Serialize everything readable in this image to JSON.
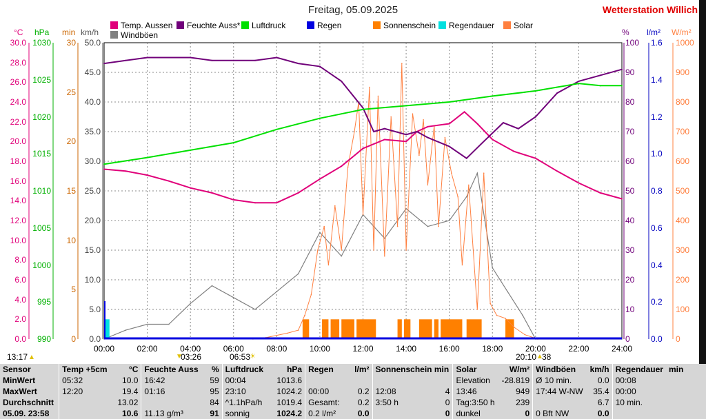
{
  "title": "Freitag, 05.09.2025",
  "brand": "Wetterstation Willich",
  "legend": [
    {
      "label": "Temp. Aussen",
      "color": "#e0007a"
    },
    {
      "label": "Feuchte Auss*",
      "color": "#70007a"
    },
    {
      "label": "Luftdruck",
      "color": "#00e000"
    },
    {
      "label": "Regen",
      "color": "#0000e0"
    },
    {
      "label": "Sonnenschein",
      "color": "#ff8000"
    },
    {
      "label": "Regendauer",
      "color": "#00e0e0"
    },
    {
      "label": "Solar",
      "color": "#ff8040"
    },
    {
      "label": "Windböen",
      "color": "#808080"
    }
  ],
  "axes": {
    "units_left": [
      "°C",
      "hPa",
      "min",
      "km/h"
    ],
    "units_right": [
      "%",
      "l/m²",
      "W/m²"
    ],
    "temp_ticks": [
      "30.0",
      "28.0",
      "26.0",
      "24.0",
      "22.0",
      "20.0",
      "18.0",
      "16.0",
      "14.0",
      "12.0",
      "10.0",
      "8.0",
      "6.0",
      "4.0",
      "2.0",
      "0.0"
    ],
    "hpa_ticks": [
      "1030",
      "1025",
      "1020",
      "1015",
      "1010",
      "1005",
      "1000",
      "995",
      "990"
    ],
    "min_ticks": [
      "30",
      "25",
      "20",
      "15",
      "10",
      "5",
      "0"
    ],
    "kmh_ticks": [
      "50.0",
      "45.0",
      "40.0",
      "35.0",
      "30.0",
      "25.0",
      "20.0",
      "15.0",
      "10.0",
      "5.0",
      "0.0"
    ],
    "pct_ticks": [
      "100",
      "90",
      "80",
      "70",
      "60",
      "50",
      "40",
      "30",
      "20",
      "10",
      "0"
    ],
    "lm2_ticks": [
      "1.6",
      "1.4",
      "1.2",
      "1.0",
      "0.8",
      "0.6",
      "0.4",
      "0.2",
      "0.0"
    ],
    "wm2_ticks": [
      "1000",
      "900",
      "800",
      "700",
      "600",
      "500",
      "400",
      "300",
      "200",
      "100",
      "0"
    ],
    "x_ticks": [
      "00:00",
      "02:00",
      "04:00",
      "06:00",
      "08:00",
      "10:00",
      "12:00",
      "14:00",
      "16:00",
      "18:00",
      "20:00",
      "22:00",
      "24:00"
    ]
  },
  "sun": {
    "moonrise": "13:17",
    "moonset": "03:26",
    "sunrise": "06:53",
    "sunset": "20:10",
    "moon_extra": "38"
  },
  "chart_data": {
    "type": "line",
    "x_unit": "hours",
    "xlim": [
      0,
      24
    ],
    "series": [
      {
        "name": "Temp. Aussen",
        "unit": "°C",
        "color": "#e0007a",
        "ylim": [
          0,
          30
        ],
        "points": [
          [
            0,
            17.2
          ],
          [
            1,
            17.0
          ],
          [
            2,
            16.6
          ],
          [
            3,
            16.0
          ],
          [
            4,
            15.3
          ],
          [
            5,
            14.8
          ],
          [
            6,
            14.1
          ],
          [
            7,
            13.8
          ],
          [
            8,
            13.8
          ],
          [
            9,
            14.8
          ],
          [
            10,
            16.2
          ],
          [
            11,
            17.5
          ],
          [
            12,
            19.3
          ],
          [
            13,
            20.2
          ],
          [
            14,
            20.0
          ],
          [
            14.5,
            21.0
          ],
          [
            15,
            21.5
          ],
          [
            16,
            21.8
          ],
          [
            16.7,
            23.0
          ],
          [
            17.3,
            21.8
          ],
          [
            18,
            20.2
          ],
          [
            19,
            19.0
          ],
          [
            20,
            18.3
          ],
          [
            21,
            17.0
          ],
          [
            22,
            15.8
          ],
          [
            23,
            14.8
          ],
          [
            24,
            14.2
          ]
        ]
      },
      {
        "name": "Feuchte Auss*",
        "unit": "%",
        "color": "#70007a",
        "ylim": [
          0,
          100
        ],
        "points": [
          [
            0,
            93
          ],
          [
            1,
            94
          ],
          [
            2,
            95
          ],
          [
            3,
            95
          ],
          [
            4,
            95
          ],
          [
            5,
            94
          ],
          [
            6,
            94
          ],
          [
            7,
            94
          ],
          [
            8,
            95
          ],
          [
            9,
            93
          ],
          [
            10,
            92
          ],
          [
            11,
            87
          ],
          [
            12,
            78
          ],
          [
            12.5,
            70
          ],
          [
            13,
            71
          ],
          [
            14,
            69
          ],
          [
            14.5,
            70
          ],
          [
            15,
            68
          ],
          [
            16,
            65
          ],
          [
            16.8,
            61
          ],
          [
            17.5,
            66
          ],
          [
            18.5,
            73
          ],
          [
            19.2,
            71
          ],
          [
            20,
            75
          ],
          [
            21,
            83
          ],
          [
            22,
            87
          ],
          [
            23,
            89
          ],
          [
            24,
            91
          ]
        ]
      },
      {
        "name": "Luftdruck",
        "unit": "hPa",
        "color": "#00e000",
        "ylim": [
          990,
          1030
        ],
        "points": [
          [
            0,
            1013.6
          ],
          [
            2,
            1014.5
          ],
          [
            4,
            1015.5
          ],
          [
            6,
            1016.5
          ],
          [
            8,
            1018.3
          ],
          [
            10,
            1019.8
          ],
          [
            12,
            1021.0
          ],
          [
            14,
            1021.5
          ],
          [
            16,
            1022.0
          ],
          [
            18,
            1022.8
          ],
          [
            20,
            1023.5
          ],
          [
            22,
            1024.5
          ],
          [
            23,
            1024.2
          ],
          [
            24,
            1024.2
          ]
        ]
      }
    ],
    "bars": [
      {
        "name": "Sonnenschein",
        "unit": "min",
        "color": "#ff8000",
        "intervals": [
          [
            9.2,
            9.5,
            2
          ],
          [
            10.1,
            10.4,
            2
          ],
          [
            10.5,
            10.9,
            2
          ],
          [
            11.0,
            11.6,
            2
          ],
          [
            11.7,
            12.6,
            2
          ],
          [
            13.6,
            13.8,
            2
          ],
          [
            13.9,
            14.2,
            2
          ],
          [
            14.6,
            15.2,
            2
          ],
          [
            15.3,
            15.5,
            2
          ],
          [
            15.6,
            16.6,
            2
          ],
          [
            16.8,
            17.5,
            2
          ],
          [
            18.6,
            19.0,
            2
          ]
        ]
      },
      {
        "name": "Regendauer",
        "unit": "min",
        "color": "#00e0e0",
        "intervals": [
          [
            0.05,
            0.25,
            2
          ]
        ]
      }
    ],
    "solar": {
      "name": "Solar",
      "unit": "W/m²",
      "color": "#ff8040",
      "ylim": [
        0,
        1000
      ],
      "points": [
        [
          6.9,
          0
        ],
        [
          7.5,
          5
        ],
        [
          8.5,
          20
        ],
        [
          9.0,
          30
        ],
        [
          9.3,
          80
        ],
        [
          9.6,
          150
        ],
        [
          9.9,
          300
        ],
        [
          10.2,
          380
        ],
        [
          10.4,
          250
        ],
        [
          10.7,
          450
        ],
        [
          11.0,
          300
        ],
        [
          11.3,
          580
        ],
        [
          11.6,
          700
        ],
        [
          11.8,
          800
        ],
        [
          12.0,
          420
        ],
        [
          12.3,
          850
        ],
        [
          12.5,
          300
        ],
        [
          12.7,
          820
        ],
        [
          13.0,
          280
        ],
        [
          13.3,
          750
        ],
        [
          13.6,
          380
        ],
        [
          13.8,
          930
        ],
        [
          14.0,
          300
        ],
        [
          14.3,
          760
        ],
        [
          14.6,
          620
        ],
        [
          14.8,
          740
        ],
        [
          15.0,
          520
        ],
        [
          15.3,
          720
        ],
        [
          15.5,
          380
        ],
        [
          15.8,
          680
        ],
        [
          16.1,
          560
        ],
        [
          16.4,
          480
        ],
        [
          16.6,
          250
        ],
        [
          16.9,
          520
        ],
        [
          17.3,
          100
        ],
        [
          17.6,
          560
        ],
        [
          17.9,
          120
        ],
        [
          18.2,
          80
        ],
        [
          18.6,
          70
        ],
        [
          19.0,
          40
        ],
        [
          19.5,
          15
        ],
        [
          20.1,
          0
        ]
      ]
    },
    "gusts": {
      "name": "Windböen",
      "unit": "km/h",
      "color": "#808080",
      "ylim": [
        0,
        50
      ],
      "points": [
        [
          0,
          0
        ],
        [
          1,
          1.5
        ],
        [
          2,
          2.5
        ],
        [
          3,
          2.5
        ],
        [
          4,
          6
        ],
        [
          5,
          9
        ],
        [
          6,
          7
        ],
        [
          7,
          5
        ],
        [
          8,
          8
        ],
        [
          9,
          11
        ],
        [
          10,
          18
        ],
        [
          11,
          14
        ],
        [
          12,
          21
        ],
        [
          13,
          17
        ],
        [
          14,
          22
        ],
        [
          15,
          19
        ],
        [
          16,
          20
        ],
        [
          16.8,
          24
        ],
        [
          17.3,
          28
        ],
        [
          18,
          12
        ],
        [
          18.7,
          8
        ],
        [
          19.4,
          4
        ],
        [
          20,
          0
        ],
        [
          24,
          0
        ]
      ]
    }
  },
  "stats": {
    "headers": [
      {
        "label": "Sensor",
        "unit": ""
      },
      {
        "label": "Temp +5cm",
        "unit": "°C"
      },
      {
        "label": "Feuchte Auss",
        "unit": "%"
      },
      {
        "label": "Luftdruck",
        "unit": "hPa"
      },
      {
        "label": "Regen",
        "unit": "l/m²"
      },
      {
        "label": "Sonnenschein min",
        "unit": ""
      },
      {
        "label": "Solar",
        "unit": "W/m²"
      },
      {
        "label": "Windböen",
        "unit": "km/h"
      },
      {
        "label": "Regendauer",
        "unit": "min"
      }
    ],
    "rows": [
      {
        "label": "MinWert",
        "temp": [
          "05:32",
          "10.0"
        ],
        "hum": [
          "16:42",
          "59"
        ],
        "press": [
          "00:04",
          "1013.6"
        ],
        "rain": [
          "",
          ""
        ],
        "sun": [
          "",
          ""
        ],
        "solar": [
          "Elevation",
          "-28.819"
        ],
        "gust": [
          "Ø 10 min.",
          "0.0"
        ],
        "raindur": [
          "00:08",
          ""
        ]
      },
      {
        "label": "MaxWert",
        "temp": [
          "12:20",
          "19.4"
        ],
        "hum": [
          "01:16",
          "95"
        ],
        "press": [
          "23:10",
          "1024.2"
        ],
        "rain": [
          "00:00",
          "0.2"
        ],
        "sun": [
          "12:08",
          "4"
        ],
        "solar": [
          "13:46",
          "949"
        ],
        "gust": [
          "17:44  W-NW",
          "35.4"
        ],
        "raindur": [
          "00:00",
          ""
        ]
      },
      {
        "label": "Durchschnitt",
        "temp": [
          "",
          "13.02"
        ],
        "hum": [
          "",
          "84"
        ],
        "press": [
          "^1.1hPa/h",
          "1019.4"
        ],
        "rain": [
          "Gesamt:",
          "0.2"
        ],
        "sun": [
          "3:50 h",
          "0"
        ],
        "solar": [
          "Tag:3:50 h",
          "239"
        ],
        "gust": [
          "",
          "6.7"
        ],
        "raindur": [
          "10 min.",
          ""
        ]
      },
      {
        "label": "05.09. 23:58",
        "temp": [
          "",
          "10.6"
        ],
        "hum": [
          "11.13 g/m³",
          "91"
        ],
        "press": [
          "sonnig",
          "1024.2"
        ],
        "rain": [
          "0.2 l/m²",
          "0.0"
        ],
        "sun": [
          "",
          "0"
        ],
        "solar": [
          "dunkel",
          "0"
        ],
        "gust": [
          "0 Bft NW",
          "0.0"
        ],
        "raindur": [
          "",
          ""
        ]
      }
    ]
  }
}
